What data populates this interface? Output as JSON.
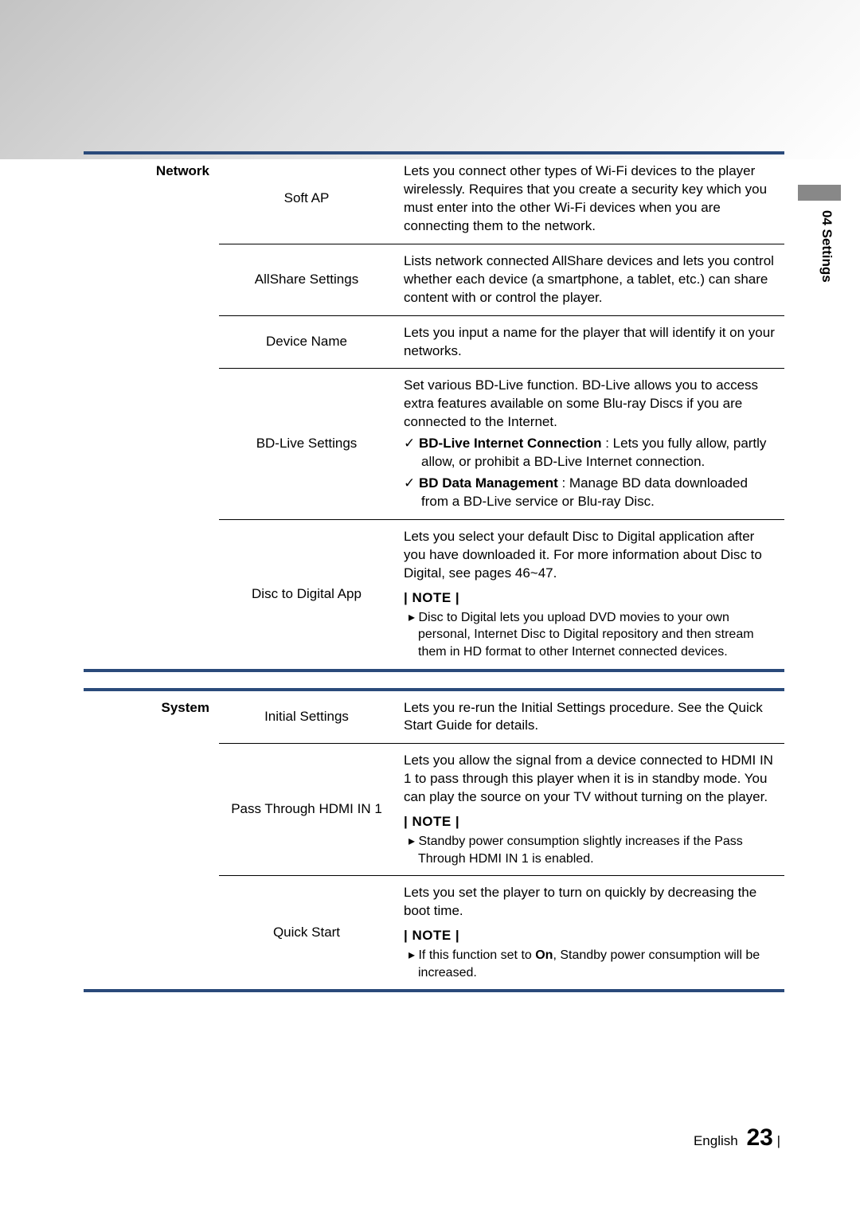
{
  "side_tab": "04  Settings",
  "footer": {
    "lang": "English",
    "page": "23",
    "bar": "|"
  },
  "sections": [
    {
      "category": "Network",
      "rows": [
        {
          "name": "Soft AP",
          "desc": "Lets you connect other types of Wi-Fi devices to the player wirelessly. Requires that you create a security key which you must enter into the other Wi-Fi devices when you are connecting them to the network."
        },
        {
          "name": "AllShare Settings",
          "desc": "Lists network connected AllShare devices and lets you control whether each device (a smartphone, a tablet, etc.) can share content with or control the player."
        },
        {
          "name": "Device Name",
          "desc": "Lets you input a name for the player that will identify it on your networks."
        },
        {
          "name": "BD-Live Settings",
          "desc": "Set various BD-Live function. BD-Live allows you to access extra features available on some Blu-ray Discs if you are connected to the Internet.",
          "sub": [
            {
              "bold": "BD-Live Internet Connection",
              "text": " : Lets you fully allow, partly allow, or prohibit a BD-Live Internet connection."
            },
            {
              "bold": "BD Data Management",
              "text": " : Manage BD data downloaded from a BD-Live service or Blu-ray Disc."
            }
          ]
        },
        {
          "name": "Disc to Digital App",
          "desc": "Lets you select your default Disc to Digital application after you have downloaded it. For more information about Disc to Digital, see pages 46~47.",
          "note": "Disc to Digital lets you upload DVD movies to your own personal, Internet Disc to Digital repository and then stream them in HD format to other Internet connected devices."
        }
      ]
    },
    {
      "category": "System",
      "rows": [
        {
          "name": "Initial Settings",
          "desc": "Lets you re-run the Initial Settings procedure. See the Quick Start Guide for details."
        },
        {
          "name": "Pass Through HDMI IN 1",
          "desc": "Lets you allow the signal from a device connected to HDMI IN 1 to pass through this player when it is in standby mode. You can play the source on your TV without turning on the player.",
          "note": "Standby power consumption slightly increases if the Pass Through HDMI IN 1 is enabled."
        },
        {
          "name": "Quick Start",
          "desc": "Lets you set the player to turn on quickly by decreasing the boot time.",
          "note_html": "If this function set to <b>On</b>, Standby power consumption will be increased."
        }
      ]
    }
  ],
  "labels": {
    "note": "| NOTE |",
    "check": "✓",
    "arrow": "▸"
  }
}
